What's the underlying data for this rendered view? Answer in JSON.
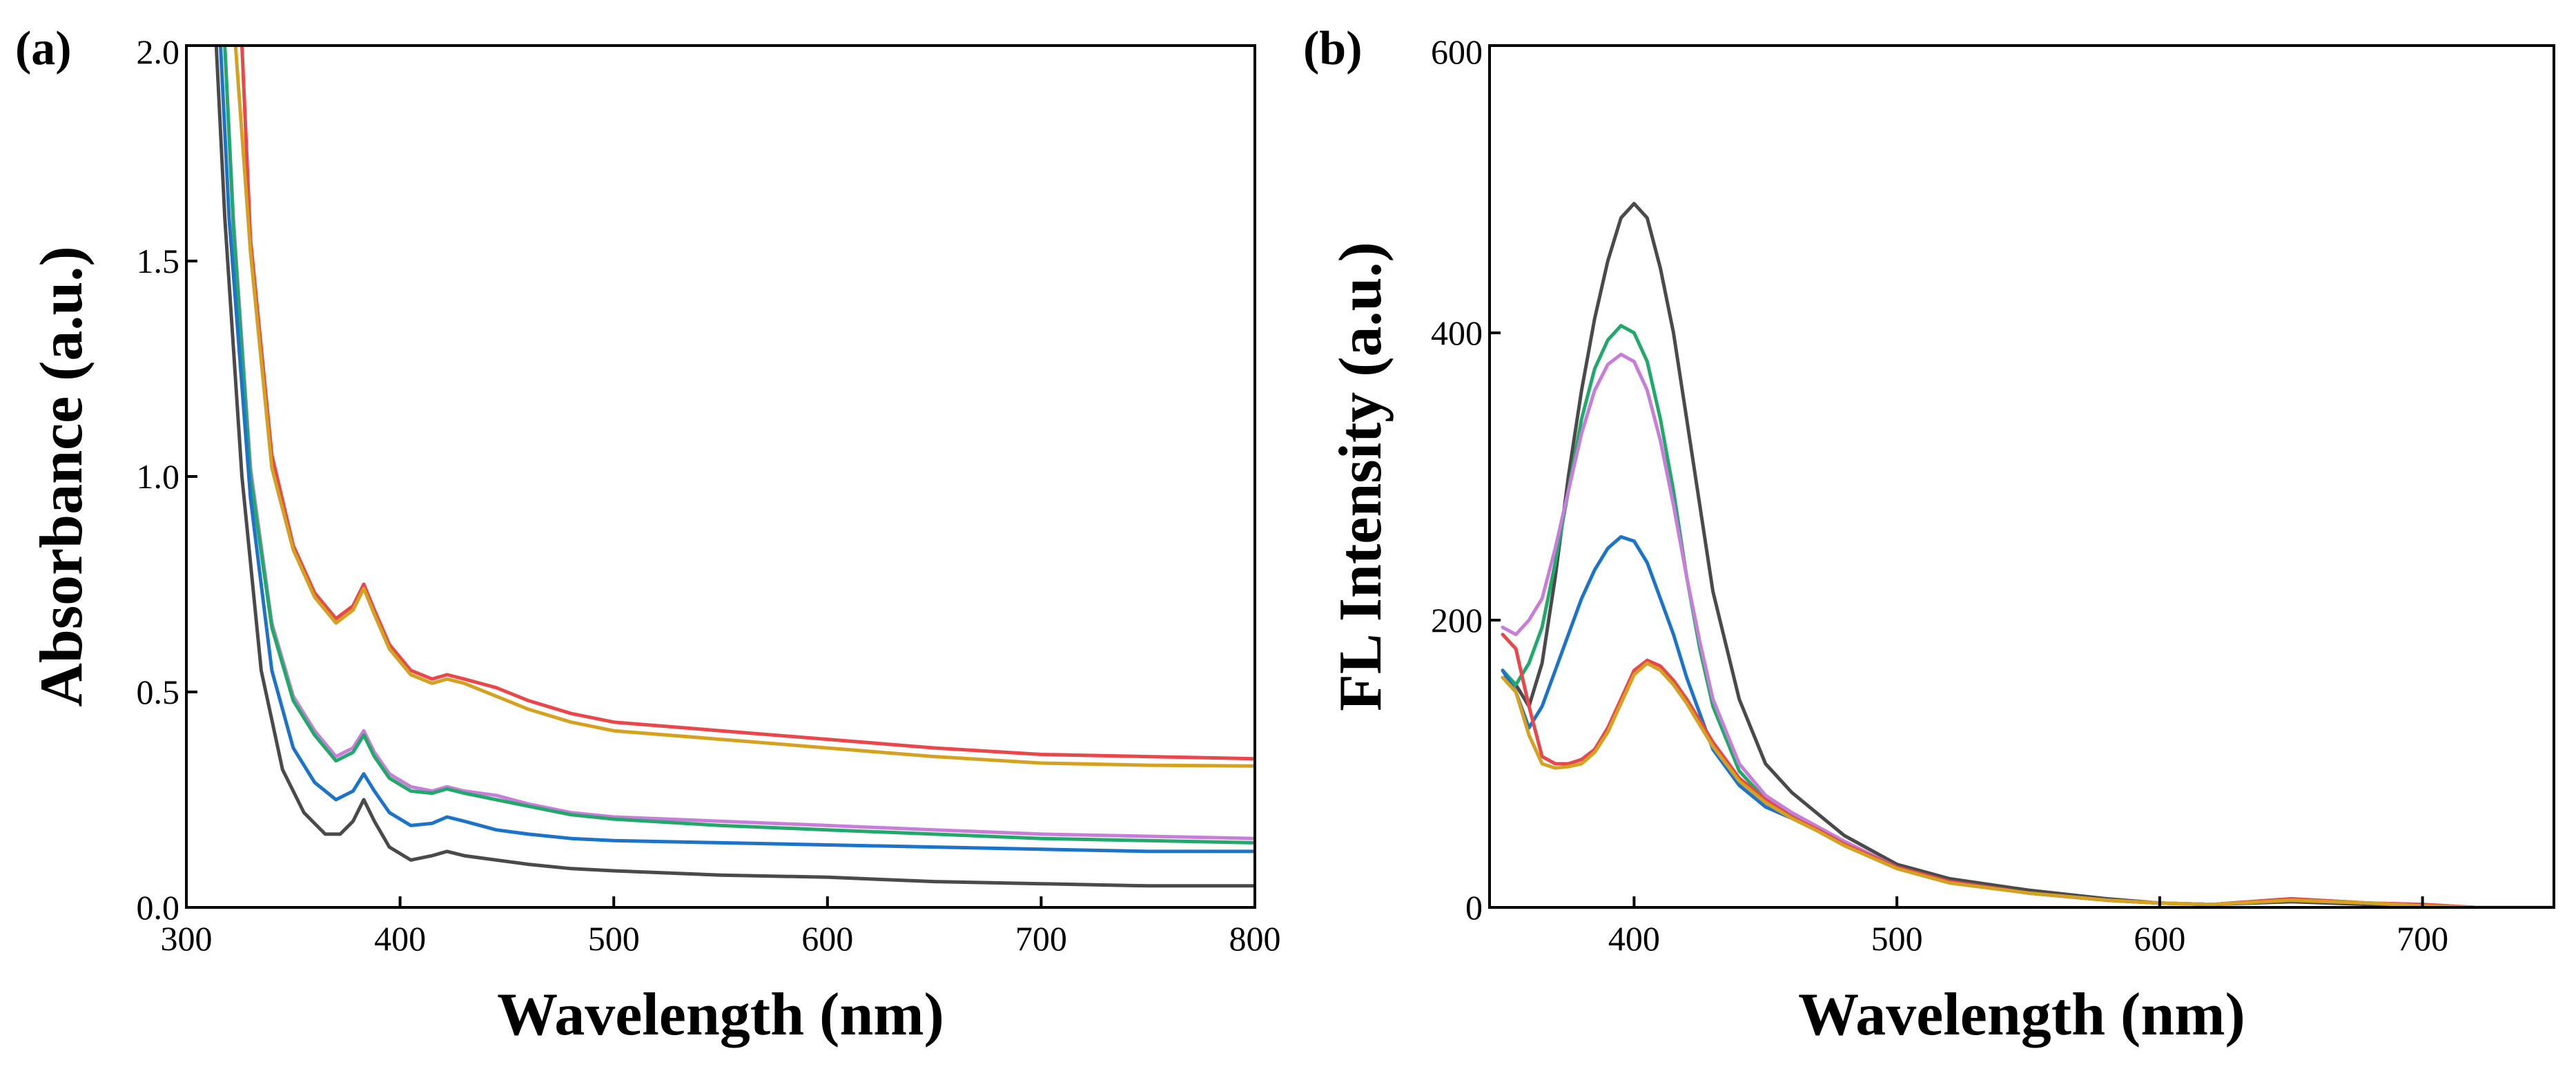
{
  "chart_data": [
    {
      "type": "line",
      "panel_label": "(a)",
      "xlabel": "Wavelength (nm)",
      "ylabel": "Absorbance (a.u.)",
      "xlim": [
        300,
        800
      ],
      "ylim": [
        0,
        2.0
      ],
      "xticks": [
        300,
        400,
        500,
        600,
        700,
        800
      ],
      "yticks": [
        0.0,
        0.5,
        1.0,
        1.5,
        2.0
      ],
      "xtick_labels": [
        "300",
        "400",
        "500",
        "600",
        "700",
        "800"
      ],
      "ytick_labels": [
        "0.0",
        "0.5",
        "1.0",
        "1.5",
        "2.0"
      ],
      "grid": false,
      "legend": false,
      "series": [
        {
          "name": "red",
          "color": "#e8474c",
          "x": [
            326,
            330,
            340,
            350,
            360,
            370,
            378,
            383,
            388,
            395,
            405,
            415,
            422,
            430,
            445,
            460,
            480,
            500,
            550,
            600,
            650,
            700,
            750,
            800
          ],
          "y": [
            2.0,
            1.55,
            1.05,
            0.84,
            0.73,
            0.67,
            0.7,
            0.75,
            0.69,
            0.61,
            0.55,
            0.53,
            0.54,
            0.53,
            0.51,
            0.48,
            0.45,
            0.43,
            0.41,
            0.39,
            0.37,
            0.355,
            0.35,
            0.345
          ]
        },
        {
          "name": "orange",
          "color": "#d4a220",
          "x": [
            323,
            330,
            340,
            350,
            360,
            370,
            378,
            383,
            388,
            395,
            405,
            415,
            422,
            430,
            445,
            460,
            480,
            500,
            550,
            600,
            650,
            700,
            750,
            800
          ],
          "y": [
            2.0,
            1.52,
            1.02,
            0.83,
            0.72,
            0.66,
            0.69,
            0.74,
            0.68,
            0.6,
            0.54,
            0.52,
            0.53,
            0.52,
            0.49,
            0.46,
            0.43,
            0.41,
            0.39,
            0.37,
            0.35,
            0.335,
            0.33,
            0.328
          ]
        },
        {
          "name": "purple",
          "color": "#c77ed8",
          "x": [
            318,
            322,
            330,
            340,
            350,
            360,
            370,
            378,
            383,
            388,
            395,
            405,
            415,
            422,
            430,
            445,
            460,
            480,
            500,
            550,
            600,
            650,
            700,
            750,
            800
          ],
          "y": [
            2.0,
            1.6,
            1.02,
            0.66,
            0.49,
            0.41,
            0.35,
            0.37,
            0.41,
            0.36,
            0.31,
            0.28,
            0.27,
            0.28,
            0.27,
            0.26,
            0.24,
            0.22,
            0.21,
            0.2,
            0.19,
            0.18,
            0.17,
            0.165,
            0.16
          ]
        },
        {
          "name": "green",
          "color": "#22a86b",
          "x": [
            318,
            322,
            330,
            340,
            350,
            360,
            370,
            378,
            383,
            388,
            395,
            405,
            415,
            422,
            430,
            445,
            460,
            480,
            500,
            550,
            600,
            650,
            700,
            750,
            800
          ],
          "y": [
            2.0,
            1.58,
            1.0,
            0.65,
            0.48,
            0.4,
            0.34,
            0.36,
            0.4,
            0.35,
            0.3,
            0.27,
            0.265,
            0.275,
            0.265,
            0.25,
            0.235,
            0.215,
            0.205,
            0.19,
            0.18,
            0.17,
            0.16,
            0.155,
            0.15
          ]
        },
        {
          "name": "blue",
          "color": "#1c73c8",
          "x": [
            316,
            320,
            330,
            340,
            350,
            360,
            370,
            378,
            383,
            388,
            395,
            405,
            415,
            422,
            430,
            445,
            460,
            480,
            500,
            550,
            600,
            650,
            700,
            750,
            800
          ],
          "y": [
            2.0,
            1.6,
            0.95,
            0.55,
            0.37,
            0.29,
            0.25,
            0.27,
            0.31,
            0.27,
            0.22,
            0.19,
            0.195,
            0.21,
            0.2,
            0.18,
            0.17,
            0.16,
            0.155,
            0.15,
            0.145,
            0.14,
            0.135,
            0.13,
            0.13
          ]
        },
        {
          "name": "black",
          "color": "#4a4a4a",
          "x": [
            314,
            318,
            326,
            335,
            345,
            355,
            365,
            372,
            378,
            383,
            388,
            395,
            405,
            415,
            422,
            430,
            445,
            460,
            480,
            500,
            550,
            600,
            650,
            700,
            750,
            800
          ],
          "y": [
            2.0,
            1.6,
            1.0,
            0.55,
            0.32,
            0.22,
            0.17,
            0.17,
            0.2,
            0.25,
            0.2,
            0.14,
            0.11,
            0.12,
            0.13,
            0.12,
            0.11,
            0.1,
            0.09,
            0.085,
            0.075,
            0.07,
            0.06,
            0.055,
            0.05,
            0.05
          ]
        }
      ]
    },
    {
      "type": "line",
      "panel_label": "(b)",
      "xlabel": "Wavelength (nm)",
      "ylabel": "FL Intensity (a.u.)",
      "xlim": [
        345,
        750
      ],
      "ylim": [
        0,
        600
      ],
      "xticks": [
        400,
        500,
        600,
        700
      ],
      "yticks": [
        0,
        200,
        400,
        600
      ],
      "xtick_labels": [
        "400",
        "500",
        "600",
        "700"
      ],
      "ytick_labels": [
        "0",
        "200",
        "400",
        "600"
      ],
      "grid": false,
      "legend": false,
      "series": [
        {
          "name": "black",
          "color": "#4a4a4a",
          "x": [
            350,
            355,
            360,
            365,
            370,
            375,
            380,
            385,
            390,
            395,
            400,
            405,
            410,
            415,
            420,
            425,
            430,
            440,
            450,
            460,
            470,
            480,
            500,
            520,
            550,
            580,
            600,
            620,
            650,
            680,
            700,
            720,
            750
          ],
          "y": [
            160,
            155,
            140,
            170,
            230,
            300,
            360,
            410,
            450,
            480,
            490,
            480,
            445,
            400,
            340,
            280,
            220,
            145,
            100,
            80,
            65,
            50,
            30,
            20,
            12,
            6,
            3,
            2,
            4,
            2,
            1,
            0,
            0
          ]
        },
        {
          "name": "green",
          "color": "#22a86b",
          "x": [
            350,
            355,
            360,
            365,
            370,
            375,
            380,
            385,
            390,
            395,
            400,
            405,
            410,
            415,
            420,
            425,
            430,
            440,
            450,
            460,
            470,
            480,
            500,
            520,
            550,
            580,
            600,
            620,
            650,
            680,
            700,
            720,
            750
          ],
          "y": [
            165,
            155,
            170,
            195,
            240,
            290,
            340,
            375,
            395,
            405,
            400,
            380,
            340,
            290,
            230,
            180,
            140,
            95,
            75,
            65,
            55,
            45,
            28,
            18,
            10,
            5,
            3,
            2,
            6,
            3,
            1,
            0,
            0
          ]
        },
        {
          "name": "purple",
          "color": "#c77ed8",
          "x": [
            350,
            355,
            360,
            365,
            370,
            375,
            380,
            385,
            390,
            395,
            400,
            405,
            410,
            415,
            420,
            425,
            430,
            440,
            450,
            460,
            470,
            480,
            500,
            520,
            550,
            580,
            600,
            620,
            650,
            680,
            700,
            720,
            750
          ],
          "y": [
            195,
            190,
            200,
            215,
            250,
            290,
            330,
            360,
            378,
            385,
            380,
            360,
            325,
            280,
            230,
            185,
            145,
            100,
            78,
            66,
            56,
            46,
            28,
            18,
            10,
            5,
            3,
            2,
            5,
            3,
            2,
            0,
            0
          ]
        },
        {
          "name": "blue",
          "color": "#1c73c8",
          "x": [
            350,
            355,
            360,
            365,
            370,
            375,
            380,
            385,
            390,
            395,
            400,
            405,
            410,
            415,
            420,
            425,
            430,
            440,
            450,
            460,
            470,
            480,
            500,
            520,
            550,
            580,
            600,
            620,
            650,
            680,
            700,
            720,
            750
          ],
          "y": [
            165,
            150,
            125,
            140,
            165,
            190,
            215,
            235,
            250,
            258,
            255,
            240,
            215,
            190,
            160,
            135,
            110,
            85,
            70,
            62,
            54,
            44,
            28,
            18,
            10,
            5,
            3,
            2,
            5,
            3,
            1,
            0,
            0
          ]
        },
        {
          "name": "red",
          "color": "#e8474c",
          "x": [
            350,
            355,
            360,
            365,
            370,
            375,
            380,
            385,
            390,
            395,
            400,
            405,
            410,
            415,
            420,
            425,
            430,
            440,
            450,
            460,
            470,
            480,
            500,
            520,
            550,
            580,
            600,
            620,
            650,
            680,
            700,
            720,
            750
          ],
          "y": [
            190,
            180,
            140,
            105,
            100,
            100,
            103,
            110,
            125,
            145,
            165,
            172,
            168,
            158,
            145,
            130,
            115,
            90,
            75,
            63,
            54,
            44,
            28,
            18,
            10,
            5,
            3,
            2,
            6,
            3,
            2,
            0,
            0
          ]
        },
        {
          "name": "orange",
          "color": "#d4a220",
          "x": [
            350,
            355,
            360,
            365,
            370,
            375,
            380,
            385,
            390,
            395,
            400,
            405,
            410,
            415,
            420,
            425,
            430,
            440,
            450,
            460,
            470,
            480,
            500,
            520,
            550,
            580,
            600,
            620,
            650,
            680,
            700,
            720,
            750
          ],
          "y": [
            160,
            150,
            120,
            100,
            97,
            98,
            100,
            108,
            122,
            142,
            162,
            170,
            165,
            155,
            142,
            127,
            112,
            88,
            73,
            62,
            53,
            43,
            27,
            17,
            10,
            5,
            3,
            2,
            5,
            3,
            1,
            0,
            0
          ]
        }
      ]
    }
  ]
}
